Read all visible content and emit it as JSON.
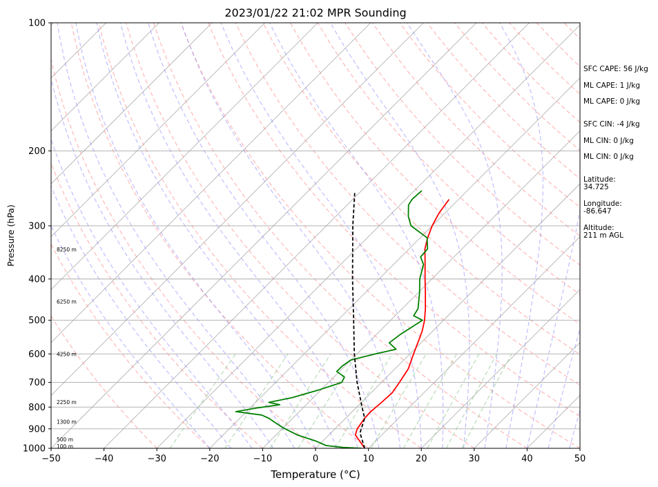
{
  "chart_data": {
    "type": "line",
    "title": "2023/01/22 21:02 MPR Sounding",
    "xlabel": "Temperature (°C)",
    "ylabel": "Pressure (hPa)",
    "xlim": [
      -50,
      50
    ],
    "ylim": [
      1000,
      100
    ],
    "y_scale": "log",
    "x_ticks": [
      "−50",
      "−40",
      "−30",
      "−20",
      "−10",
      "0",
      "10",
      "20",
      "30",
      "40",
      "50"
    ],
    "y_ticks": [
      {
        "p": 1000,
        "label": "1000"
      },
      {
        "p": 900,
        "label": "900"
      },
      {
        "p": 800,
        "label": "800"
      },
      {
        "p": 700,
        "label": "700"
      },
      {
        "p": 600,
        "label": "600"
      },
      {
        "p": 500,
        "label": "500"
      },
      {
        "p": 400,
        "label": "400"
      },
      {
        "p": 300,
        "label": "300"
      },
      {
        "p": 200,
        "label": "200"
      },
      {
        "p": 100,
        "label": "100"
      }
    ],
    "height_labels": [
      {
        "p": 988,
        "label": "100 m"
      },
      {
        "p": 952,
        "label": "500 m"
      },
      {
        "p": 866,
        "label": "1300 m"
      },
      {
        "p": 778,
        "label": "2250 m"
      },
      {
        "p": 600,
        "label": "4250 m"
      },
      {
        "p": 452,
        "label": "6250 m"
      },
      {
        "p": 341,
        "label": "8250 m"
      }
    ],
    "series": [
      {
        "color": "#ff0000",
        "points": [
          [
            1000,
            9.3
          ],
          [
            970,
            7.5
          ],
          [
            930,
            5.0
          ],
          [
            900,
            4.2
          ],
          [
            850,
            3.6
          ],
          [
            820,
            3.5
          ],
          [
            780,
            3.8
          ],
          [
            740,
            4.0
          ],
          [
            700,
            3.4
          ],
          [
            650,
            2.5
          ],
          [
            600,
            0.7
          ],
          [
            560,
            -0.8
          ],
          [
            530,
            -2.0
          ],
          [
            500,
            -3.6
          ],
          [
            470,
            -5.6
          ],
          [
            430,
            -8.7
          ],
          [
            400,
            -11.3
          ],
          [
            370,
            -14.0
          ],
          [
            340,
            -17.0
          ],
          [
            320,
            -18.6
          ],
          [
            300,
            -20.0
          ],
          [
            280,
            -21.1
          ],
          [
            260,
            -21.8
          ]
        ]
      },
      {
        "color": "#008000",
        "points": [
          [
            1000,
            8.8
          ],
          [
            995,
            5.0
          ],
          [
            985,
            1.5
          ],
          [
            960,
            -1.5
          ],
          [
            930,
            -6.0
          ],
          [
            895,
            -10.0
          ],
          [
            870,
            -12.5
          ],
          [
            850,
            -14.5
          ],
          [
            835,
            -16.5
          ],
          [
            820,
            -22.0
          ],
          [
            803,
            -18.5
          ],
          [
            790,
            -15.0
          ],
          [
            780,
            -17.5
          ],
          [
            760,
            -14.0
          ],
          [
            730,
            -10.5
          ],
          [
            700,
            -7.5
          ],
          [
            680,
            -8.0
          ],
          [
            660,
            -10.5
          ],
          [
            640,
            -10.5
          ],
          [
            620,
            -10.0
          ],
          [
            600,
            -6.5
          ],
          [
            585,
            -3.5
          ],
          [
            565,
            -6.0
          ],
          [
            540,
            -5.5
          ],
          [
            500,
            -4.0
          ],
          [
            488,
            -6.5
          ],
          [
            470,
            -7.0
          ],
          [
            430,
            -9.8
          ],
          [
            400,
            -12.3
          ],
          [
            370,
            -14.3
          ],
          [
            355,
            -16.3
          ],
          [
            340,
            -16.5
          ],
          [
            320,
            -18.7
          ],
          [
            300,
            -24.0
          ],
          [
            285,
            -26.3
          ],
          [
            268,
            -28.4
          ],
          [
            260,
            -28.8
          ],
          [
            248,
            -28.6
          ]
        ]
      },
      {
        "color": "#000000",
        "dash": "dashed",
        "points": [
          [
            1000,
            9.3
          ],
          [
            920,
            5.5
          ],
          [
            850,
            3.6
          ],
          [
            800,
            1.0
          ],
          [
            700,
            -4.6
          ],
          [
            600,
            -10.5
          ],
          [
            500,
            -17.0
          ],
          [
            400,
            -25.0
          ],
          [
            300,
            -35.0
          ],
          [
            250,
            -41.0
          ]
        ]
      }
    ],
    "background": {
      "isotherm_color": "#aaaaaa",
      "dry_adiabat_color": "#ff9999",
      "moist_adiabat_color": "#8888ff",
      "mixing_ratio_color": "#99cc99",
      "isobar_color": "#aaaaaa"
    }
  },
  "info": {
    "sfc_cape": "SFC CAPE: 56 J/kg",
    "ml_cape_1": "ML CAPE: 1 J/kg",
    "ml_cape_2": "ML CAPE: 0 J/kg",
    "sfc_cin": "SFC CIN: -4 J/kg",
    "ml_cin_1": "ML CIN: 0 J/kg",
    "ml_cin_2": "ML CIN: 0 J/kg",
    "latitude_label": "Latitude:",
    "latitude_value": "34.725",
    "longitude_label": "Longitude:",
    "longitude_value": "-86.647",
    "altitude_label": "Altitude:",
    "altitude_value": "211 m AGL"
  }
}
